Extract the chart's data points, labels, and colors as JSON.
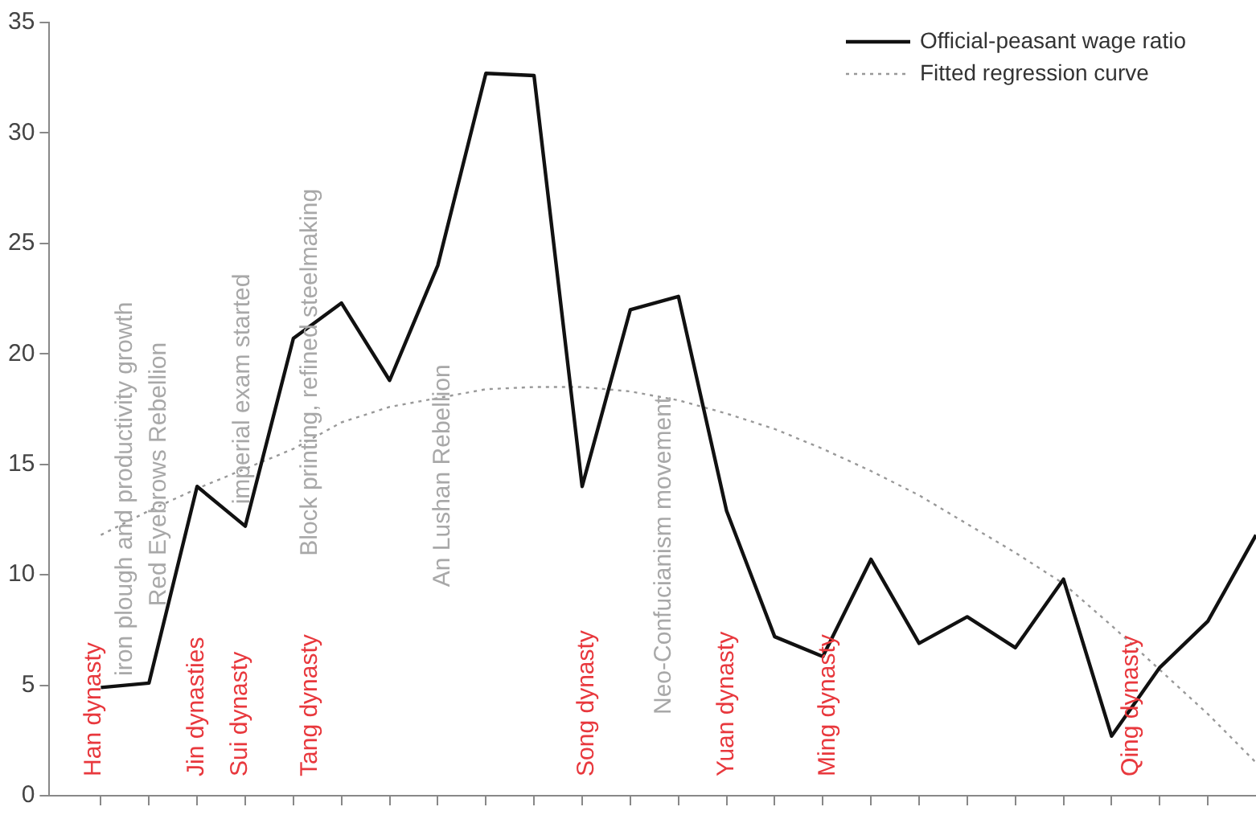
{
  "chart_data": {
    "type": "line",
    "categories": [
      null,
      null,
      null,
      null,
      null,
      null,
      null,
      null,
      null,
      null,
      null,
      null,
      null,
      null,
      null,
      null,
      null,
      null,
      null,
      null,
      null,
      null,
      null,
      null,
      null
    ],
    "series": [
      {
        "name": "Official-peasant wage ratio",
        "color": "#111111",
        "line_style": "solid",
        "values": [
          4.9,
          5.1,
          14.0,
          12.2,
          20.7,
          22.3,
          18.8,
          24.0,
          32.7,
          32.6,
          14.0,
          22.0,
          22.6,
          12.9,
          7.2,
          6.3,
          10.7,
          6.9,
          8.1,
          6.7,
          9.8,
          2.7,
          5.8,
          7.9,
          11.8
        ]
      },
      {
        "name": "Fitted regression curve",
        "color": "#999999",
        "line_style": "dotted",
        "values": [
          11.8,
          12.9,
          13.9,
          14.8,
          15.7,
          16.9,
          17.6,
          18.0,
          18.4,
          18.5,
          18.5,
          18.3,
          17.9,
          17.3,
          16.6,
          15.7,
          14.7,
          13.6,
          12.3,
          11.0,
          9.6,
          7.7,
          5.7,
          3.7,
          1.5
        ]
      }
    ],
    "ylim": [
      0,
      35
    ],
    "yticks": [
      0,
      5,
      10,
      15,
      20,
      25,
      30,
      35
    ],
    "tick_labels": "y",
    "marker": "none",
    "legend": "top right",
    "annotations": [
      "Han dynasty",
      "Jin dynasties",
      "Sui dynasty",
      "Tang dynasty",
      "Song dynasty",
      "Yuan dynasty",
      "Ming dynasty",
      "Qing dynasty",
      "iron plough and productivity growth",
      "Red Eyebrows Rebellion",
      "imperial exam started",
      "Block printing, refined steelmaking",
      "An Lushan Rebellion",
      "Neo-Confucianism movement"
    ]
  }
}
